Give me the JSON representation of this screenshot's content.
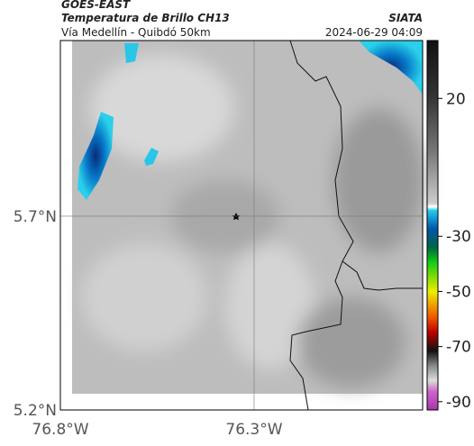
{
  "header": {
    "satellite": "GOES-EAST",
    "product": "Temperatura de Brillo CH13",
    "region": "Vía Medellín - Quibdó 50km",
    "source": "SIATA",
    "datetime": "2024-06-29 04:09"
  },
  "map": {
    "xlim": [
      -76.8,
      -75.865
    ],
    "ylim": [
      5.2,
      6.153
    ],
    "xticks": [
      {
        "value": -76.8,
        "label": "76.8°W"
      },
      {
        "value": -76.3,
        "label": "76.3°W"
      }
    ],
    "yticks": [
      {
        "value": 5.7,
        "label": "5.7°N"
      },
      {
        "value": 5.2,
        "label": "5.2°N"
      }
    ]
  },
  "colorbar": {
    "lim": [
      -93,
      41
    ],
    "ticks": [
      20,
      -30,
      -50,
      -70,
      -90
    ]
  }
}
